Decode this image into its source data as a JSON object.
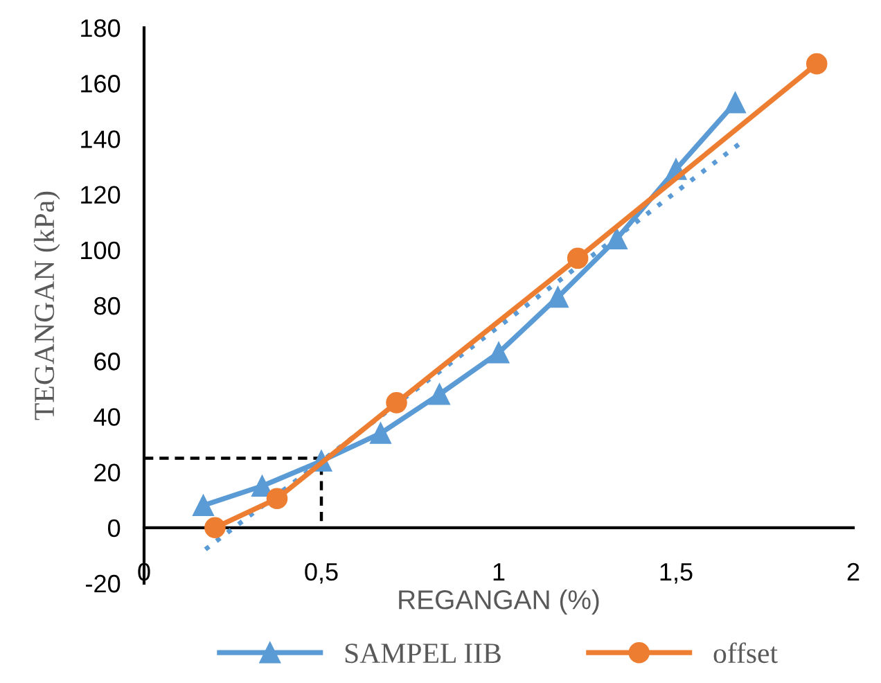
{
  "chart_data": {
    "type": "line",
    "xlabel": "REGANGAN (%)",
    "ylabel": "TEGANGAN (kPa)",
    "xlim": [
      0,
      2
    ],
    "xticks": [
      0,
      {
        "value": 0.5,
        "label": "0,5"
      },
      1,
      {
        "value": 1.5,
        "label": "1,5"
      },
      2
    ],
    "ylim": [
      -20,
      180
    ],
    "yticks": [
      -20,
      0,
      20,
      40,
      60,
      80,
      100,
      120,
      140,
      160,
      180
    ],
    "grid": false,
    "legend": "bottom",
    "series": [
      {
        "name": "SAMPEL IIB",
        "color": "#5b9bd5",
        "marker": "triangle",
        "line_style": "solid",
        "x": [
          0.167,
          0.333,
          0.5,
          0.667,
          0.833,
          1.0,
          1.167,
          1.333,
          1.5,
          1.667
        ],
        "values": [
          8,
          15,
          24,
          34,
          48,
          63,
          83,
          104,
          129,
          153
        ]
      },
      {
        "name": "offset",
        "color": "#ed7d31",
        "marker": "circle",
        "line_style": "solid",
        "x": [
          0.2,
          0.375,
          0.712,
          1.223,
          1.897
        ],
        "values": [
          0,
          10.5,
          45,
          97,
          167
        ]
      },
      {
        "color": "#5b9bd5",
        "marker": "none",
        "line_style": "dotted",
        "x": [
          0.173,
          1.684
        ],
        "values": [
          -7.8,
          138.7
        ]
      },
      {
        "color": "#000000",
        "marker": "none",
        "line_style": "dashed",
        "x": [
          0,
          0.5,
          0.5
        ],
        "values": [
          25,
          25,
          0
        ]
      }
    ]
  }
}
